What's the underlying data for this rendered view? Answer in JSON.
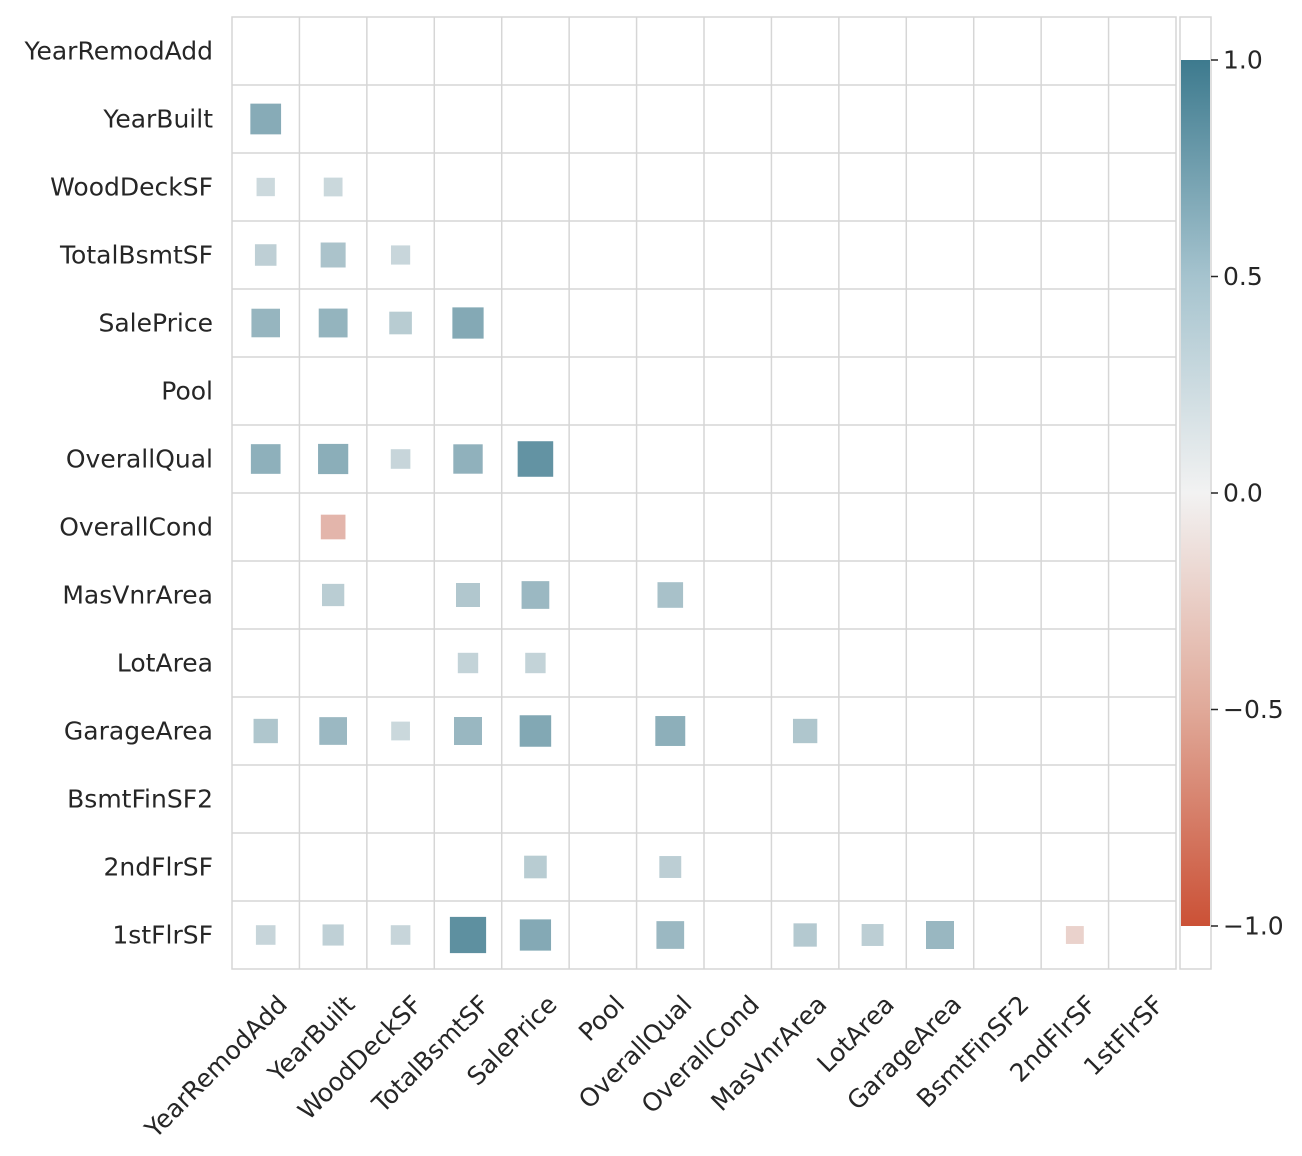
{
  "chart_data": {
    "type": "heatmap",
    "title": "",
    "xlabel": "",
    "ylabel": "",
    "variables": [
      "YearRemodAdd",
      "YearBuilt",
      "WoodDeckSF",
      "TotalBsmtSF",
      "SalePrice",
      "Pool",
      "OverallQual",
      "OverallCond",
      "MasVnrArea",
      "LotArea",
      "GarageArea",
      "BsmtFinSF2",
      "2ndFlrSF",
      "1stFlrSF"
    ],
    "x_labels": [
      "YearRemodAdd",
      "YearBuilt",
      "WoodDeckSF",
      "TotalBsmtSF",
      "SalePrice",
      "Pool",
      "OverallQual",
      "OverallCond",
      "MasVnrArea",
      "LotArea",
      "GarageArea",
      "BsmtFinSF2",
      "2ndFlrSF",
      "1stFlrSF"
    ],
    "y_labels": [
      "YearRemodAdd",
      "YearBuilt",
      "WoodDeckSF",
      "TotalBsmtSF",
      "SalePrice",
      "Pool",
      "OverallQual",
      "OverallCond",
      "MasVnrArea",
      "LotArea",
      "GarageArea",
      "BsmtFinSF2",
      "2ndFlrSF",
      "1stFlrSF"
    ],
    "masked": "upper-triangle-and-diagonal",
    "marker": "square, size and color proportional to correlation",
    "cells": [
      {
        "row": "YearBuilt",
        "col": "YearRemodAdd",
        "value": 0.59
      },
      {
        "row": "WoodDeckSF",
        "col": "YearRemodAdd",
        "value": 0.21
      },
      {
        "row": "WoodDeckSF",
        "col": "YearBuilt",
        "value": 0.22
      },
      {
        "row": "TotalBsmtSF",
        "col": "YearRemodAdd",
        "value": 0.29
      },
      {
        "row": "TotalBsmtSF",
        "col": "YearBuilt",
        "value": 0.39
      },
      {
        "row": "TotalBsmtSF",
        "col": "WoodDeckSF",
        "value": 0.23
      },
      {
        "row": "SalePrice",
        "col": "YearRemodAdd",
        "value": 0.51
      },
      {
        "row": "SalePrice",
        "col": "YearBuilt",
        "value": 0.52
      },
      {
        "row": "SalePrice",
        "col": "WoodDeckSF",
        "value": 0.32
      },
      {
        "row": "SalePrice",
        "col": "TotalBsmtSF",
        "value": 0.61
      },
      {
        "row": "OverallQual",
        "col": "YearRemodAdd",
        "value": 0.55
      },
      {
        "row": "OverallQual",
        "col": "YearBuilt",
        "value": 0.57
      },
      {
        "row": "OverallQual",
        "col": "WoodDeckSF",
        "value": 0.24
      },
      {
        "row": "OverallQual",
        "col": "TotalBsmtSF",
        "value": 0.54
      },
      {
        "row": "OverallQual",
        "col": "SalePrice",
        "value": 0.79
      },
      {
        "row": "OverallCond",
        "col": "YearBuilt",
        "value": -0.38
      },
      {
        "row": "MasVnrArea",
        "col": "YearBuilt",
        "value": 0.31
      },
      {
        "row": "MasVnrArea",
        "col": "TotalBsmtSF",
        "value": 0.36
      },
      {
        "row": "MasVnrArea",
        "col": "SalePrice",
        "value": 0.48
      },
      {
        "row": "MasVnrArea",
        "col": "OverallQual",
        "value": 0.41
      },
      {
        "row": "LotArea",
        "col": "TotalBsmtSF",
        "value": 0.26
      },
      {
        "row": "LotArea",
        "col": "SalePrice",
        "value": 0.26
      },
      {
        "row": "GarageArea",
        "col": "YearRemodAdd",
        "value": 0.37
      },
      {
        "row": "GarageArea",
        "col": "YearBuilt",
        "value": 0.48
      },
      {
        "row": "GarageArea",
        "col": "WoodDeckSF",
        "value": 0.22
      },
      {
        "row": "GarageArea",
        "col": "TotalBsmtSF",
        "value": 0.49
      },
      {
        "row": "GarageArea",
        "col": "SalePrice",
        "value": 0.62
      },
      {
        "row": "GarageArea",
        "col": "OverallQual",
        "value": 0.56
      },
      {
        "row": "GarageArea",
        "col": "MasVnrArea",
        "value": 0.37
      },
      {
        "row": "2ndFlrSF",
        "col": "SalePrice",
        "value": 0.32
      },
      {
        "row": "2ndFlrSF",
        "col": "OverallQual",
        "value": 0.3
      },
      {
        "row": "1stFlrSF",
        "col": "YearRemodAdd",
        "value": 0.24
      },
      {
        "row": "1stFlrSF",
        "col": "YearBuilt",
        "value": 0.28
      },
      {
        "row": "1stFlrSF",
        "col": "WoodDeckSF",
        "value": 0.24
      },
      {
        "row": "1stFlrSF",
        "col": "TotalBsmtSF",
        "value": 0.82
      },
      {
        "row": "1stFlrSF",
        "col": "SalePrice",
        "value": 0.61
      },
      {
        "row": "1stFlrSF",
        "col": "OverallQual",
        "value": 0.48
      },
      {
        "row": "1stFlrSF",
        "col": "MasVnrArea",
        "value": 0.34
      },
      {
        "row": "1stFlrSF",
        "col": "LotArea",
        "value": 0.3
      },
      {
        "row": "1stFlrSF",
        "col": "GarageArea",
        "value": 0.49
      },
      {
        "row": "1stFlrSF",
        "col": "2ndFlrSF",
        "value": -0.2
      }
    ],
    "colorbar": {
      "range": [
        -1.0,
        1.0
      ],
      "ticks": [
        1.0,
        0.5,
        0.0,
        -0.5,
        -1.0
      ],
      "tick_labels": [
        "1.0",
        "0.5",
        "0.0",
        "−0.5",
        "−1.0"
      ],
      "placement": "right",
      "colors": {
        "high": "#3d7a8e",
        "mid": "#f2f2f2",
        "low": "#cb5136"
      }
    },
    "grid": true
  }
}
